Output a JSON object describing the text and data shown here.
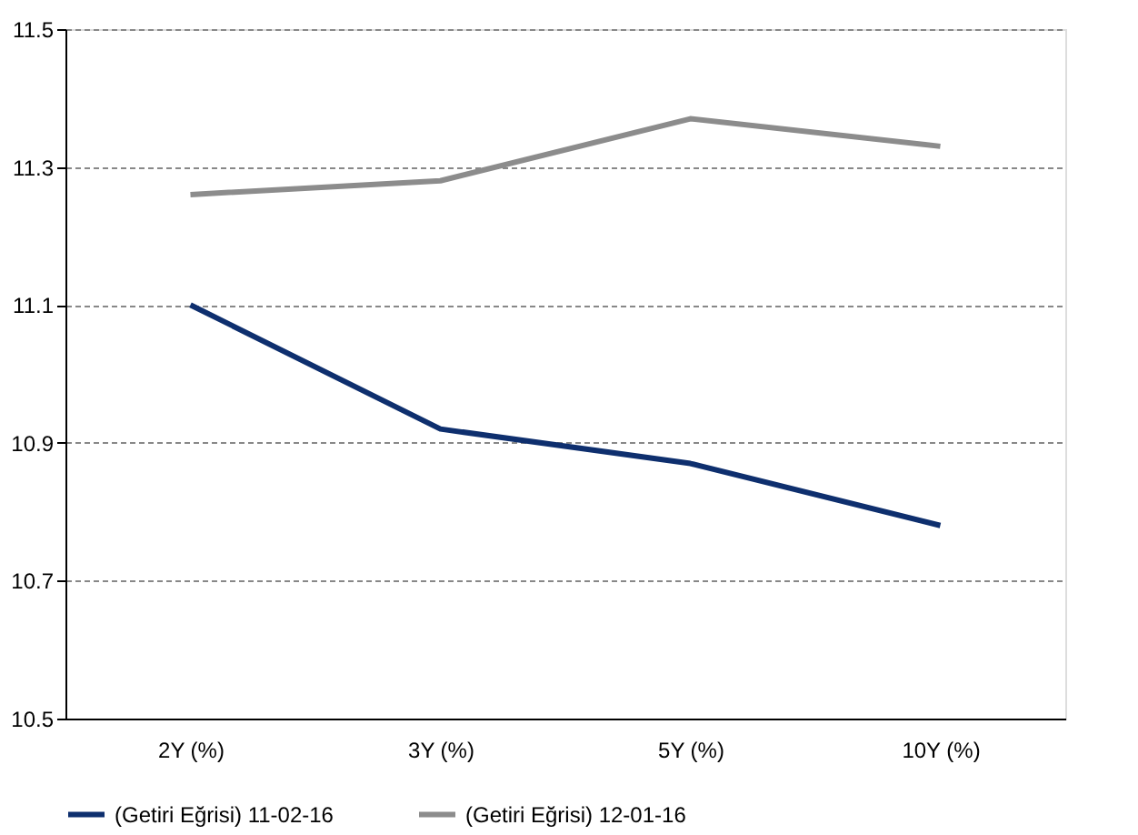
{
  "chart_data": {
    "type": "line",
    "categories": [
      "2Y (%)",
      "3Y (%)",
      "5Y (%)",
      "10Y (%)"
    ],
    "series": [
      {
        "name": "(Getiri Eğrisi) 11-02-16",
        "color": "#0e2f6e",
        "values": [
          11.1,
          10.92,
          10.87,
          10.78
        ]
      },
      {
        "name": "(Getiri Eğrisi) 12-01-16",
        "color": "#8c8c8c",
        "values": [
          11.26,
          11.28,
          11.37,
          11.33
        ]
      }
    ],
    "ylim": [
      10.5,
      11.5
    ],
    "yticks": [
      10.5,
      10.7,
      10.9,
      11.1,
      11.3,
      11.5
    ],
    "grid": "y",
    "legend": "bottom",
    "marker": "none",
    "line_style": "solid"
  }
}
